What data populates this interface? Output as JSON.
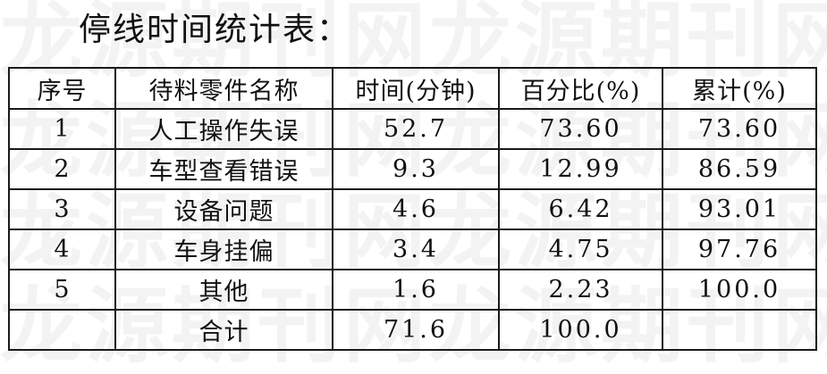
{
  "title": "停线时间统计表：",
  "watermark": {
    "rows": [
      "龙源期刊网龙源期刊网",
      "龙源期刊网龙源期刊网",
      "龙源期刊网龙源期刊网",
      "龙源期刊网龙源期刊网"
    ],
    "color": "#f3f3f3"
  },
  "table": {
    "headers": [
      "序号",
      "待料零件名称",
      "时间(分钟)",
      "百分比(%)",
      "累计(%)"
    ],
    "rows": [
      [
        "1",
        "人工操作失误",
        "52.7",
        "73.60",
        "73.60"
      ],
      [
        "2",
        "车型查看错误",
        "9.3",
        "12.99",
        "86.59"
      ],
      [
        "3",
        "设备问题",
        "4.6",
        "6.42",
        "93.01"
      ],
      [
        "4",
        "车身挂偏",
        "3.4",
        "4.75",
        "97.76"
      ],
      [
        "5",
        "其他",
        "1.6",
        "2.23",
        "100.0"
      ],
      [
        "",
        "合计",
        "71.6",
        "100.0",
        ""
      ]
    ]
  }
}
